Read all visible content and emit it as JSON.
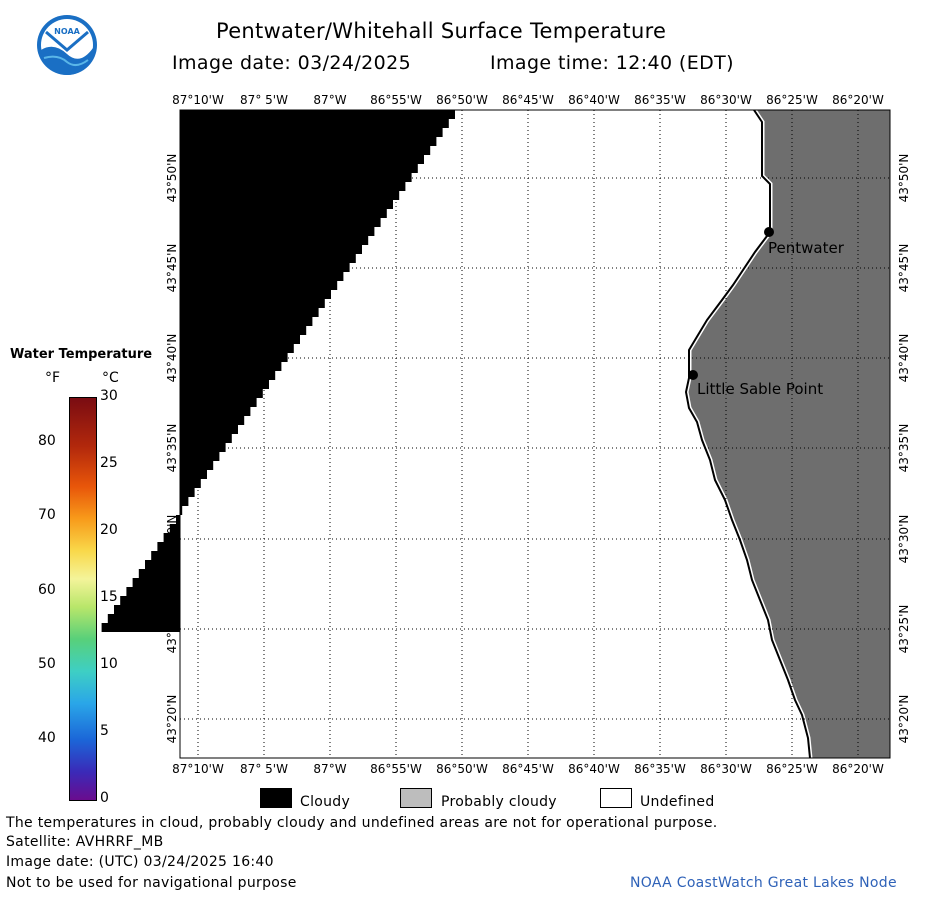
{
  "header": {
    "title": "Pentwater/Whitehall Surface Temperature",
    "subtitle_date": "Image date: 03/24/2025",
    "subtitle_time": "Image time: 12:40 (EDT)"
  },
  "logo": {
    "text": "NOAA",
    "colors": {
      "blue": "#1a6fc4",
      "light": "#5ab6e8"
    }
  },
  "map": {
    "lon_labels": [
      "87°10'W",
      "87° 5'W",
      "87°W",
      "86°55'W",
      "86°50'W",
      "86°45'W",
      "86°40'W",
      "86°35'W",
      "86°30'W",
      "86°25'W",
      "86°20'W"
    ],
    "lat_labels": [
      "43°50'N",
      "43°45'N",
      "43°40'N",
      "43°35'N",
      "43°30'N",
      "43°25'N",
      "43°20'N"
    ],
    "places": [
      {
        "name": "Pentwater"
      },
      {
        "name": "Little Sable Point"
      }
    ],
    "colors": {
      "cloud": "#000000",
      "land": "#6e6e6e",
      "undefined": "#ffffff",
      "coast": "#000000"
    }
  },
  "scale": {
    "title": "Water Temperature",
    "unit_f": "°F",
    "unit_c": "°C",
    "f_labels": [
      "80",
      "70",
      "60",
      "50",
      "40"
    ],
    "c_labels": [
      "30",
      "25",
      "20",
      "15",
      "10",
      "5",
      "0"
    ]
  },
  "legend": {
    "cloudy": "Cloudy",
    "probably_cloudy": "Probably cloudy",
    "undefined": "Undefined",
    "colors": {
      "cloudy": "#000000",
      "probably_cloudy": "#bdbdbd",
      "undefined": "#ffffff"
    }
  },
  "footer": {
    "note": "The temperatures in cloud, probably cloudy and undefined areas are not for operational purpose.",
    "satellite": "Satellite: AVHRRF_MB",
    "utc_date": "Image date: (UTC) 03/24/2025  16:40",
    "nav_warning": "Not to be used for navigational purpose",
    "credit": "NOAA CoastWatch Great Lakes Node"
  }
}
